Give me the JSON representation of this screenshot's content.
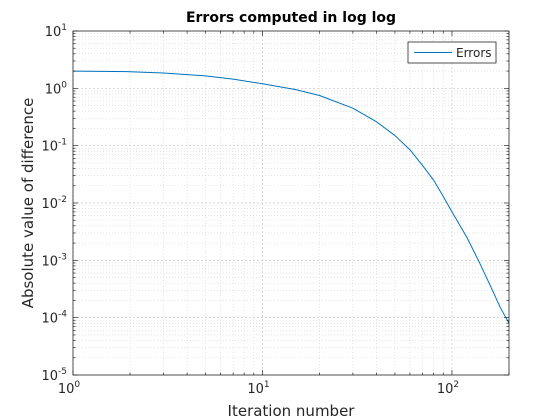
{
  "chart_data": {
    "type": "line",
    "title": "Errors computed in log log",
    "xlabel": "Iteration number",
    "ylabel": "Absolute value of difference",
    "xscale": "log",
    "yscale": "log",
    "xlim": [
      1,
      200
    ],
    "ylim": [
      1e-05,
      10
    ],
    "grid": true,
    "minor_grid": true,
    "legend_position": "top-right",
    "x_ticks": [
      {
        "value": 1,
        "base": "10",
        "exp": "0"
      },
      {
        "value": 10,
        "base": "10",
        "exp": "1"
      },
      {
        "value": 100,
        "base": "10",
        "exp": "2"
      }
    ],
    "y_ticks": [
      {
        "value": 1e-05,
        "base": "10",
        "exp": "-5"
      },
      {
        "value": 0.0001,
        "base": "10",
        "exp": "-4"
      },
      {
        "value": 0.001,
        "base": "10",
        "exp": "-3"
      },
      {
        "value": 0.01,
        "base": "10",
        "exp": "-2"
      },
      {
        "value": 0.1,
        "base": "10",
        "exp": "-1"
      },
      {
        "value": 1,
        "base": "10",
        "exp": "0"
      },
      {
        "value": 10,
        "base": "10",
        "exp": "1"
      }
    ],
    "series": [
      {
        "name": "Errors",
        "color": "#0072BD",
        "x": [
          1,
          2,
          3,
          5,
          7,
          10,
          15,
          20,
          30,
          40,
          50,
          60,
          70,
          80,
          90,
          100,
          120,
          140,
          160,
          180,
          200
        ],
        "y": [
          2.0,
          1.95,
          1.85,
          1.65,
          1.45,
          1.2,
          0.95,
          0.75,
          0.45,
          0.26,
          0.15,
          0.085,
          0.045,
          0.025,
          0.013,
          0.007,
          0.0025,
          0.0009,
          0.00035,
          0.00015,
          8e-05
        ]
      }
    ]
  }
}
